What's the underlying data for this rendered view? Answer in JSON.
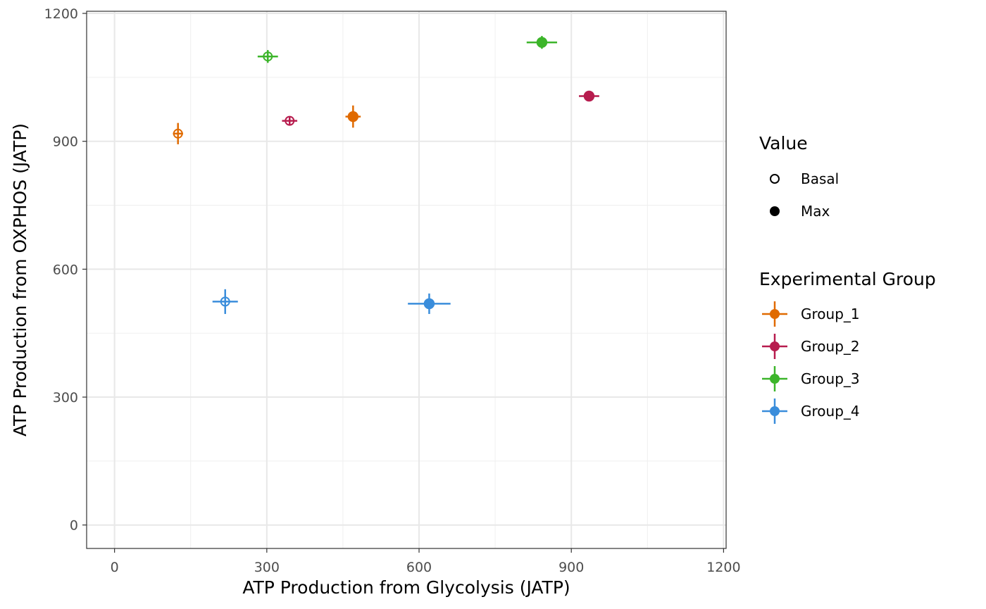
{
  "chart_data": {
    "type": "scatter",
    "xlabel": "ATP Production from Glycolysis (JATP)",
    "ylabel": "ATP Production from OXPHOS (JATP)",
    "xlim": [
      -55,
      1205
    ],
    "ylim": [
      -55,
      1205
    ],
    "x_ticks": [
      0,
      300,
      600,
      900,
      1200
    ],
    "y_ticks": [
      0,
      300,
      600,
      900,
      1200
    ],
    "x_tick_labels": [
      "0",
      "300",
      "600",
      "900",
      "1200"
    ],
    "y_tick_labels": [
      "0",
      "300",
      "600",
      "900",
      "1200"
    ],
    "grid": true,
    "legend_placement": "right",
    "shape_legend": {
      "title": "Value",
      "items": [
        {
          "label": "Basal",
          "filled": false
        },
        {
          "label": "Max",
          "filled": true
        }
      ]
    },
    "color_legend": {
      "title": "Experimental Group",
      "items": [
        {
          "label": "Group_1",
          "color": "#E06A00"
        },
        {
          "label": "Group_2",
          "color": "#B71C4E"
        },
        {
          "label": "Group_3",
          "color": "#3CB52A"
        },
        {
          "label": "Group_4",
          "color": "#3A8DDB"
        }
      ]
    },
    "points": [
      {
        "group": "Group_1",
        "value": "Basal",
        "x": 125,
        "y": 918,
        "x_err": 10,
        "y_err": 25
      },
      {
        "group": "Group_1",
        "value": "Max",
        "x": 470,
        "y": 958,
        "x_err": 15,
        "y_err": 26
      },
      {
        "group": "Group_2",
        "value": "Basal",
        "x": 345,
        "y": 948,
        "x_err": 15,
        "y_err": 9
      },
      {
        "group": "Group_2",
        "value": "Max",
        "x": 935,
        "y": 1006,
        "x_err": 20,
        "y_err": 9
      },
      {
        "group": "Group_3",
        "value": "Basal",
        "x": 302,
        "y": 1099,
        "x_err": 20,
        "y_err": 15
      },
      {
        "group": "Group_3",
        "value": "Max",
        "x": 842,
        "y": 1132,
        "x_err": 30,
        "y_err": 15
      },
      {
        "group": "Group_4",
        "value": "Basal",
        "x": 218,
        "y": 524,
        "x_err": 25,
        "y_err": 29
      },
      {
        "group": "Group_4",
        "value": "Max",
        "x": 620,
        "y": 519,
        "x_err": 42,
        "y_err": 24
      }
    ]
  }
}
